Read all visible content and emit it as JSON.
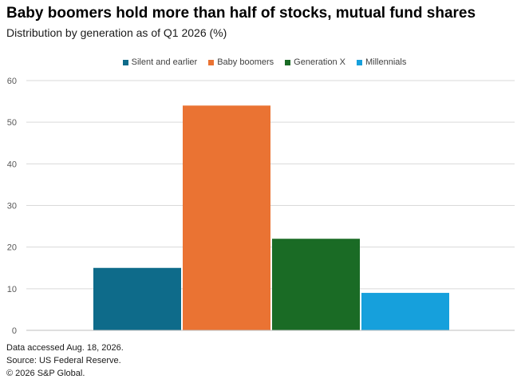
{
  "header": {
    "title": "Baby boomers hold more than half of stocks, mutual fund shares",
    "subtitle": "Distribution by generation as of Q1 2026 (%)"
  },
  "chart_data": {
    "type": "bar",
    "categories": [
      ""
    ],
    "series": [
      {
        "name": "Silent and earlier",
        "values": [
          15
        ],
        "color": "#0e6b8a"
      },
      {
        "name": "Baby boomers",
        "values": [
          54
        ],
        "color": "#ea7333"
      },
      {
        "name": "Generation X",
        "values": [
          22
        ],
        "color": "#1a6b25"
      },
      {
        "name": "Millennials",
        "values": [
          9
        ],
        "color": "#16a0dc"
      }
    ],
    "y_ticks": [
      "0",
      "10",
      "20",
      "30",
      "40",
      "50",
      "60"
    ],
    "ylim": [
      0,
      60
    ],
    "grid": true,
    "legend_position": "top-center"
  },
  "footer": {
    "line1": "Data accessed Aug. 18, 2026.",
    "line2": "Source: US Federal Reserve.",
    "line3": "© 2026 S&P Global."
  }
}
